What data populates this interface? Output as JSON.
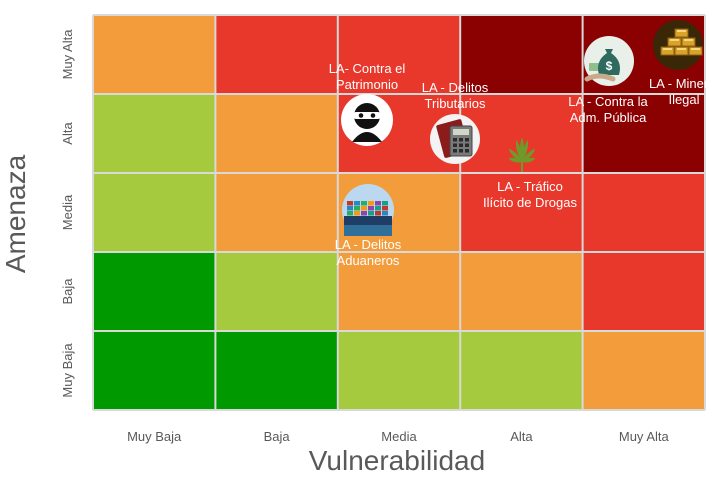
{
  "chart_data": {
    "type": "heatmap",
    "title": "",
    "xlabel": "Vulnerabilidad",
    "ylabel": "Amenaza",
    "x_categories": [
      "Muy Baja",
      "Baja",
      "Media",
      "Alta",
      "Muy Alta"
    ],
    "y_categories": [
      "Muy Baja",
      "Baja",
      "Media",
      "Alta",
      "Muy Alta"
    ],
    "grid": true,
    "cell_colors": [
      [
        "#009900",
        "#009900",
        "#a6ca3e",
        "#a6ca3e",
        "#f39c3c"
      ],
      [
        "#009900",
        "#a6ca3e",
        "#f39c3c",
        "#f39c3c",
        "#e8372b"
      ],
      [
        "#a6ca3e",
        "#f39c3c",
        "#f39c3c",
        "#e8372b",
        "#e8372b"
      ],
      [
        "#a6ca3e",
        "#f39c3c",
        "#e8372b",
        "#e8372b",
        "#8b0000"
      ],
      [
        "#f39c3c",
        "#e8372b",
        "#e8372b",
        "#8b0000",
        "#8b0000"
      ]
    ],
    "points": [
      {
        "label": [
          "LA- Contra el",
          "Patrimonio"
        ],
        "x": "Media",
        "y": "Alta",
        "icon": "thief-icon"
      },
      {
        "label": [
          "LA - Delitos",
          "Tributarios"
        ],
        "x": "Media",
        "y": "Alta",
        "icon": "calculator-icon"
      },
      {
        "label": [
          "LA - Tráfico",
          "Ilícito de Drogas"
        ],
        "x": "Alta",
        "y": "Alta",
        "icon": "cannabis-leaf-icon"
      },
      {
        "label": [
          "LA - Contra la",
          "Adm. Pública"
        ],
        "x": "Muy Alta",
        "y": "Muy Alta",
        "icon": "money-bag-icon"
      },
      {
        "label": [
          "LA - Minería",
          "Ilegal"
        ],
        "x": "Muy Alta",
        "y": "Muy Alta",
        "icon": "gold-bars-icon"
      },
      {
        "label": [
          "LA - Delitos",
          "Aduaneros"
        ],
        "x": "Media",
        "y": "Media",
        "icon": "cargo-ship-icon"
      }
    ]
  }
}
